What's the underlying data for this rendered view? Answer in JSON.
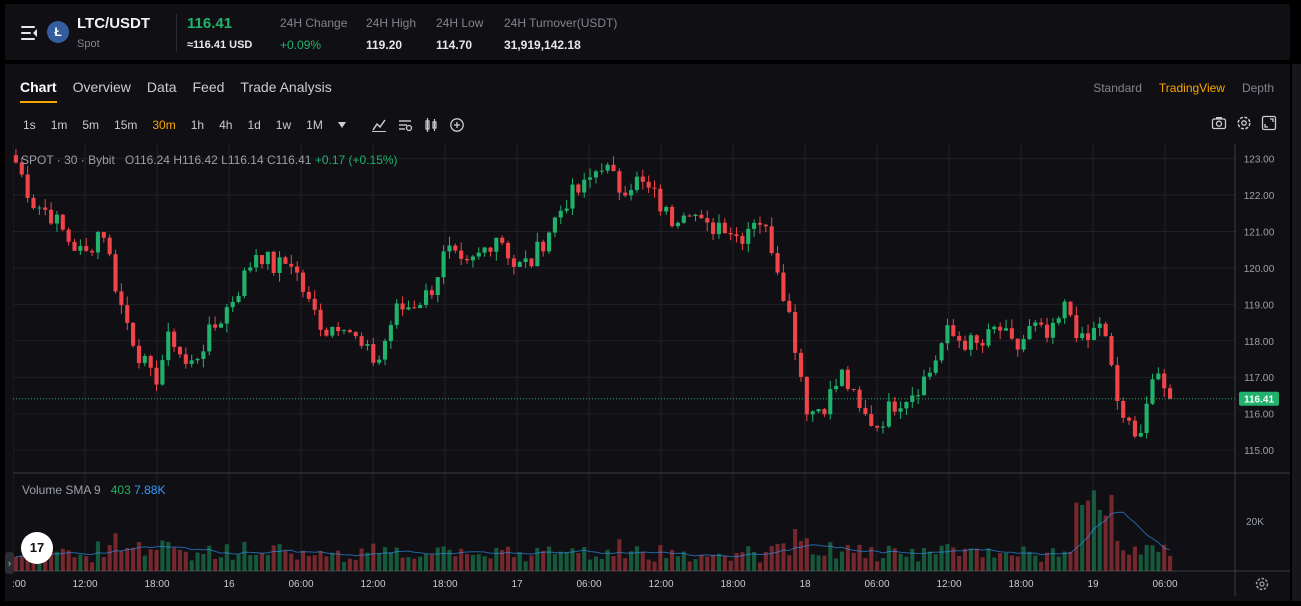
{
  "ticker": {
    "pair": "LTC/USDT",
    "market_type": "Spot",
    "coin_glyph": "Ł",
    "last_price": "116.41",
    "last_price_usd": "≈116.41 USD",
    "stats": [
      {
        "label": "24H Change",
        "value": "+0.09%",
        "positive": true
      },
      {
        "label": "24H High",
        "value": "119.20"
      },
      {
        "label": "24H Low",
        "value": "114.70"
      },
      {
        "label": "24H Turnover(USDT)",
        "value": "31,919,142.18"
      }
    ]
  },
  "tabs": [
    "Chart",
    "Overview",
    "Data",
    "Feed",
    "Trade Analysis"
  ],
  "active_tab": "Chart",
  "views": [
    "Standard",
    "TradingView",
    "Depth"
  ],
  "active_view": "TradingView",
  "intervals": [
    "1s",
    "1m",
    "5m",
    "15m",
    "30m",
    "1h",
    "4h",
    "1d",
    "1w",
    "1M"
  ],
  "active_interval": "30m",
  "legend": {
    "source": "SPOT · 30 · Bybit",
    "open": "O116.24",
    "high": "H116.42",
    "low": "L116.14",
    "close": "C116.41",
    "change": "+0.17 (+0.15%)"
  },
  "volume_legend": {
    "label": "Volume SMA 9",
    "value": "403",
    "sma": "7.88K"
  },
  "volume_axis_label": "20K",
  "tv_logo_text": "17",
  "colors": {
    "up": "#20b26c",
    "down": "#ef454a",
    "accent": "#f7a600",
    "sma": "#2f9bff"
  },
  "chart_data": {
    "type": "candlestick",
    "interval": "30m",
    "ylim": [
      114.4,
      123.4
    ],
    "y_ticks": [
      115.0,
      116.0,
      117.0,
      118.0,
      119.0,
      120.0,
      121.0,
      122.0,
      123.0
    ],
    "current_price": 116.41,
    "x_tick_labels": [
      ":00",
      "12:00",
      "18:00",
      "16",
      "06:00",
      "12:00",
      "18:00",
      "17",
      "06:00",
      "12:00",
      "18:00",
      "18",
      "06:00",
      "12:00",
      "18:00",
      "19",
      "06:00"
    ],
    "close_path": [
      122.9,
      121.8,
      121.5,
      120.8,
      120.3,
      121.2,
      119.1,
      117.8,
      116.8,
      118.2,
      117.2,
      118.0,
      118.7,
      119.5,
      120.5,
      120.0,
      120.2,
      119.0,
      118.3,
      118.6,
      117.8,
      117.4,
      118.8,
      119.0,
      119.3,
      120.5,
      119.9,
      120.4,
      121.0,
      120.0,
      120.2,
      121.1,
      121.9,
      122.2,
      122.9,
      122.2,
      122.4,
      122.0,
      121.3,
      121.8,
      121.0,
      121.3,
      120.8,
      121.5,
      120.5,
      118.5,
      116.0,
      116.3,
      117.1,
      116.0,
      115.7,
      116.3,
      116.6,
      117.1,
      118.2,
      118.0,
      117.8,
      118.4,
      117.7,
      118.4,
      118.0,
      119.0,
      117.8,
      118.6,
      116.2,
      115.2,
      117.0,
      116.4
    ]
  }
}
